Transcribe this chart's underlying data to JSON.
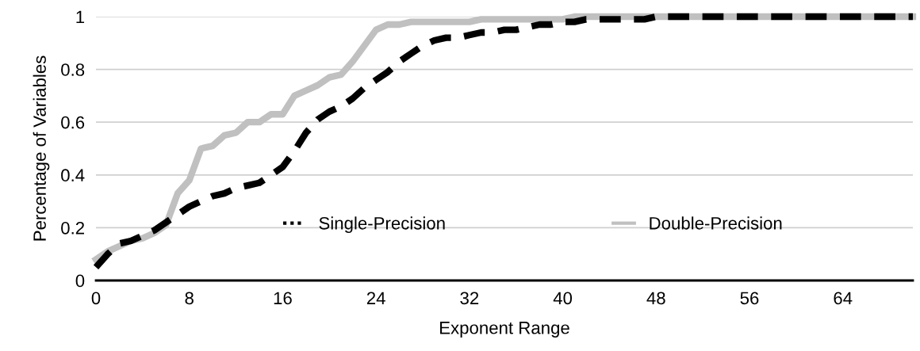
{
  "chart_data": {
    "type": "line",
    "xlabel": "Exponent Range",
    "ylabel": "Percentage of Variables",
    "x": [
      0,
      1,
      2,
      3,
      4,
      5,
      6,
      7,
      8,
      9,
      10,
      11,
      12,
      13,
      14,
      15,
      16,
      17,
      18,
      19,
      20,
      21,
      22,
      23,
      24,
      25,
      26,
      27,
      28,
      29,
      30,
      31,
      32,
      33,
      34,
      35,
      36,
      37,
      38,
      39,
      40,
      41,
      42,
      43,
      44,
      45,
      46,
      47,
      48,
      49,
      50,
      51,
      52,
      53,
      54,
      55,
      56,
      57,
      58,
      59,
      60,
      61,
      62,
      63,
      64,
      65,
      66,
      67,
      68,
      69,
      70
    ],
    "series": [
      {
        "name": "Single-Precision",
        "color": "#000000",
        "line_style": "dashed",
        "values": [
          0.05,
          0.1,
          0.14,
          0.15,
          0.17,
          0.19,
          0.22,
          0.25,
          0.28,
          0.3,
          0.32,
          0.33,
          0.35,
          0.36,
          0.37,
          0.4,
          0.43,
          0.49,
          0.56,
          0.61,
          0.64,
          0.66,
          0.69,
          0.73,
          0.76,
          0.79,
          0.83,
          0.86,
          0.89,
          0.91,
          0.92,
          0.92,
          0.93,
          0.94,
          0.94,
          0.95,
          0.95,
          0.96,
          0.97,
          0.97,
          0.98,
          0.98,
          0.99,
          0.99,
          0.99,
          0.99,
          0.99,
          0.99,
          1,
          1,
          1,
          1,
          1,
          1,
          1,
          1,
          1,
          1,
          1,
          1,
          1,
          1,
          1,
          1,
          1,
          1,
          1,
          1,
          1,
          1,
          1
        ]
      },
      {
        "name": "Double-Precision",
        "color": "#c0c0c0",
        "line_style": "solid",
        "values": [
          0.08,
          0.11,
          0.13,
          0.15,
          0.16,
          0.18,
          0.21,
          0.33,
          0.38,
          0.5,
          0.51,
          0.55,
          0.56,
          0.6,
          0.6,
          0.63,
          0.63,
          0.7,
          0.72,
          0.74,
          0.77,
          0.78,
          0.83,
          0.89,
          0.95,
          0.97,
          0.97,
          0.98,
          0.98,
          0.98,
          0.98,
          0.98,
          0.98,
          0.99,
          0.99,
          0.99,
          0.99,
          0.99,
          0.99,
          0.99,
          0.99,
          1,
          1,
          1,
          1,
          1,
          1,
          1,
          1,
          1,
          1,
          1,
          1,
          1,
          1,
          1,
          1,
          1,
          1,
          1,
          1,
          1,
          1,
          1,
          1,
          1,
          1,
          1,
          1,
          1,
          1
        ]
      }
    ],
    "xlim": [
      0,
      70
    ],
    "xticks": [
      0,
      8,
      16,
      24,
      32,
      40,
      48,
      56,
      64
    ],
    "ylim": [
      0,
      1
    ],
    "yticks": [
      0,
      0.2,
      0.4,
      0.6,
      0.8,
      1
    ],
    "grid": "y",
    "legend": "bottom right",
    "marker": "none"
  }
}
